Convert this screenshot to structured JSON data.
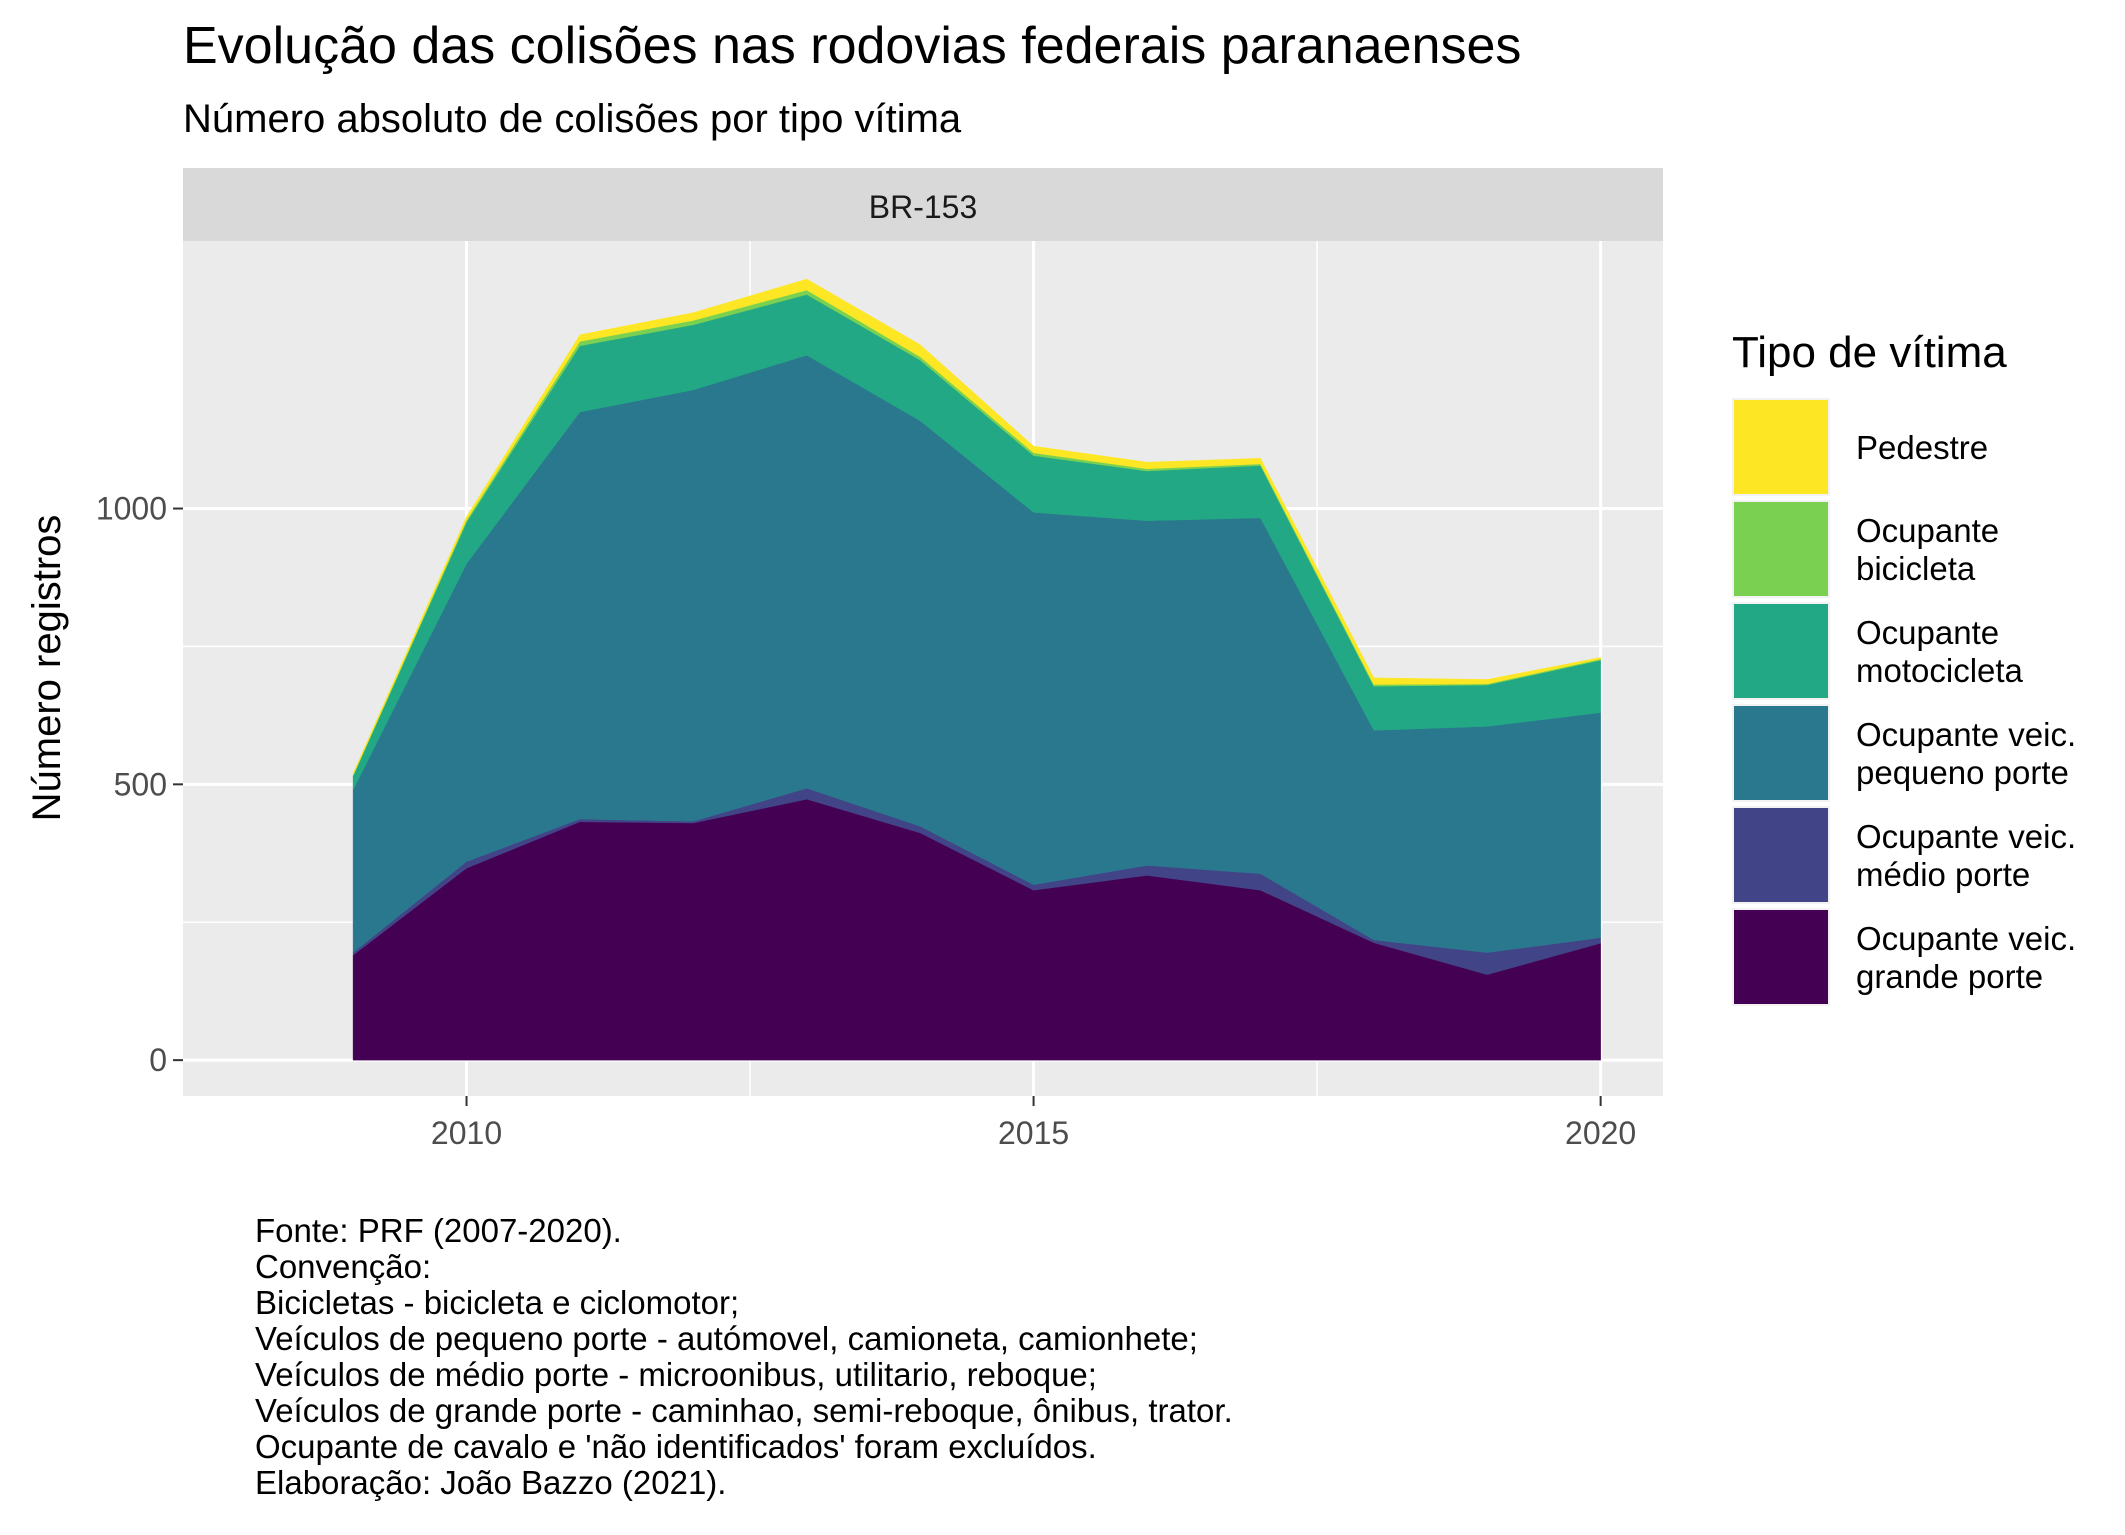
{
  "chart_data": {
    "type": "area",
    "stacked": true,
    "title": "Evolução das colisões nas rodovias federais paranaenses",
    "subtitle": "Número absoluto de colisões por tipo vítima",
    "facet": "BR-153",
    "xlabel": "",
    "ylabel": "Número registros",
    "x": [
      2009,
      2010,
      2011,
      2012,
      2013,
      2014,
      2015,
      2016,
      2017,
      2018,
      2019,
      2020
    ],
    "xticks": [
      2010,
      2015,
      2020
    ],
    "xtick_labels": [
      "2010",
      "2015",
      "2020"
    ],
    "yticks": [
      0,
      500,
      1000
    ],
    "ytick_labels": [
      "0",
      "500",
      "1000"
    ],
    "xlim": [
      2007.5,
      2020.55
    ],
    "ylim": [
      -65,
      1485
    ],
    "grid": true,
    "legend_title": "Tipo de vítima",
    "legend_position": "right",
    "series": [
      {
        "name": "Ocupante veic. grande porte",
        "lines": [
          "Ocupante veic.",
          "grande porte"
        ],
        "color": "#440154",
        "values": [
          190,
          348,
          432,
          430,
          473,
          412,
          308,
          335,
          308,
          213,
          155,
          212
        ]
      },
      {
        "name": "Ocupante veic. médio porte",
        "lines": [
          "Ocupante veic.",
          "médio porte"
        ],
        "color": "#414487",
        "values": [
          5,
          12,
          5,
          3,
          20,
          12,
          10,
          18,
          30,
          5,
          40,
          10
        ]
      },
      {
        "name": "Ocupante veic. pequeno porte",
        "lines": [
          "Ocupante veic.",
          "pequeno porte"
        ],
        "color": "#2A788E",
        "values": [
          295,
          540,
          738,
          782,
          785,
          735,
          675,
          625,
          645,
          380,
          410,
          408
        ]
      },
      {
        "name": "Ocupante motocicleta",
        "lines": [
          "Ocupante",
          "motocicleta"
        ],
        "color": "#22A884",
        "values": [
          25,
          75,
          120,
          118,
          110,
          110,
          103,
          90,
          95,
          80,
          75,
          95
        ]
      },
      {
        "name": "Ocupante bicicleta",
        "lines": [
          "Ocupante",
          "bicicleta"
        ],
        "color": "#7AD151",
        "values": [
          2,
          4,
          8,
          8,
          8,
          6,
          5,
          4,
          3,
          3,
          2,
          2
        ]
      },
      {
        "name": "Pedestre",
        "lines": [
          "Pedestre"
        ],
        "color": "#FDE725",
        "values": [
          3,
          6,
          12,
          14,
          20,
          22,
          12,
          12,
          10,
          12,
          8,
          3
        ]
      }
    ],
    "caption": [
      "Fonte: PRF (2007-2020).",
      "Convenção:",
      "Bicicletas - bicicleta e ciclomotor;",
      "Veículos de pequeno porte - autómovel, camioneta, camionhete;",
      "Veículos de médio porte - microonibus, utilitario, reboque;",
      "Veículos de grande porte - caminhao, semi-reboque, ônibus, trator.",
      "Ocupante de cavalo e 'não identificados' foram excluídos.",
      "Elaboração: João Bazzo (2021)."
    ]
  }
}
